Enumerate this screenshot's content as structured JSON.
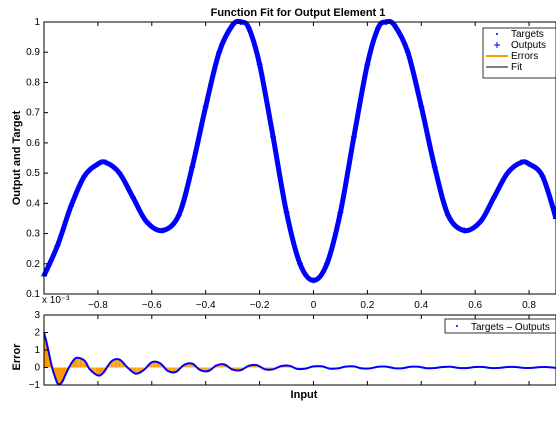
{
  "colors": {
    "targets": "#0000ff",
    "outputs": "#0000ff",
    "errors": "#ff9900",
    "fit": "#000000",
    "axes": "#000000"
  },
  "chart_data": [
    {
      "type": "line",
      "title": "Function Fit for Output Element 1",
      "xlabel": "",
      "ylabel": "Output and Target",
      "xlim": [
        -1,
        0.9
      ],
      "ylim": [
        0.1,
        1.0
      ],
      "x_ticks": [
        -0.8,
        -0.6,
        -0.4,
        -0.2,
        0,
        0.2,
        0.4,
        0.6,
        0.8
      ],
      "x_tick_labels": [
        "−0.8",
        "−0.6",
        "−0.4",
        "−0.2",
        "0",
        "0.2",
        "0.4",
        "0.6",
        "0.8"
      ],
      "y_ticks": [
        0.1,
        0.2,
        0.3,
        0.4,
        0.5,
        0.6,
        0.7,
        0.8,
        0.9,
        1
      ],
      "y_tick_labels": [
        "0.1",
        "0.2",
        "0.3",
        "0.4",
        "0.5",
        "0.6",
        "0.7",
        "0.8",
        "0.9",
        "1"
      ],
      "legend": {
        "position": "top-right",
        "entries": [
          "Targets",
          "Outputs",
          "Errors",
          "Fit"
        ]
      },
      "series": [
        {
          "name": "Targets",
          "marker": "dot",
          "x": [
            -1.0,
            -0.95,
            -0.9,
            -0.85,
            -0.8,
            -0.77,
            -0.72,
            -0.67,
            -0.62,
            -0.56,
            -0.5,
            -0.45,
            -0.4,
            -0.35,
            -0.3,
            -0.27,
            -0.24,
            -0.2,
            -0.15,
            -0.1,
            -0.05,
            0.0,
            0.05,
            0.1,
            0.15,
            0.2,
            0.24,
            0.27,
            0.3,
            0.35,
            0.4,
            0.45,
            0.5,
            0.56,
            0.62,
            0.67,
            0.72,
            0.77,
            0.8,
            0.85,
            0.9
          ],
          "y": [
            0.16,
            0.26,
            0.39,
            0.49,
            0.53,
            0.535,
            0.5,
            0.42,
            0.34,
            0.31,
            0.36,
            0.52,
            0.72,
            0.9,
            0.99,
            1.0,
            0.98,
            0.86,
            0.62,
            0.37,
            0.2,
            0.145,
            0.2,
            0.37,
            0.62,
            0.86,
            0.98,
            1.0,
            0.99,
            0.9,
            0.72,
            0.52,
            0.36,
            0.31,
            0.34,
            0.42,
            0.5,
            0.535,
            0.53,
            0.49,
            0.35
          ]
        },
        {
          "name": "Outputs",
          "marker": "plus",
          "x": [
            -1.0,
            -0.95,
            -0.9,
            -0.85,
            -0.8,
            -0.77,
            -0.72,
            -0.67,
            -0.62,
            -0.56,
            -0.5,
            -0.45,
            -0.4,
            -0.35,
            -0.3,
            -0.27,
            -0.24,
            -0.2,
            -0.15,
            -0.1,
            -0.05,
            0.0,
            0.05,
            0.1,
            0.15,
            0.2,
            0.24,
            0.27,
            0.3,
            0.35,
            0.4,
            0.45,
            0.5,
            0.56,
            0.62,
            0.67,
            0.72,
            0.77,
            0.8,
            0.85,
            0.9
          ],
          "y": [
            0.16,
            0.26,
            0.39,
            0.49,
            0.53,
            0.535,
            0.5,
            0.42,
            0.34,
            0.31,
            0.36,
            0.52,
            0.72,
            0.9,
            0.99,
            1.0,
            0.98,
            0.86,
            0.62,
            0.37,
            0.2,
            0.145,
            0.2,
            0.37,
            0.62,
            0.86,
            0.98,
            1.0,
            0.99,
            0.9,
            0.72,
            0.52,
            0.36,
            0.31,
            0.34,
            0.42,
            0.5,
            0.535,
            0.53,
            0.49,
            0.35
          ]
        },
        {
          "name": "Fit",
          "marker": "none",
          "x": [
            -1.0,
            -0.95,
            -0.9,
            -0.85,
            -0.8,
            -0.77,
            -0.72,
            -0.67,
            -0.62,
            -0.56,
            -0.5,
            -0.45,
            -0.4,
            -0.35,
            -0.3,
            -0.27,
            -0.24,
            -0.2,
            -0.15,
            -0.1,
            -0.05,
            0.0,
            0.05,
            0.1,
            0.15,
            0.2,
            0.24,
            0.27,
            0.3,
            0.35,
            0.4,
            0.45,
            0.5,
            0.56,
            0.62,
            0.67,
            0.72,
            0.77,
            0.8,
            0.85,
            0.9
          ],
          "y": [
            0.16,
            0.26,
            0.39,
            0.49,
            0.53,
            0.535,
            0.5,
            0.42,
            0.34,
            0.31,
            0.36,
            0.52,
            0.72,
            0.9,
            0.99,
            1.0,
            0.98,
            0.86,
            0.62,
            0.37,
            0.2,
            0.145,
            0.2,
            0.37,
            0.62,
            0.86,
            0.98,
            1.0,
            0.99,
            0.9,
            0.72,
            0.52,
            0.36,
            0.31,
            0.34,
            0.42,
            0.5,
            0.535,
            0.53,
            0.49,
            0.35
          ]
        }
      ]
    },
    {
      "type": "area",
      "title": "",
      "xlabel": "Input",
      "ylabel": "Error",
      "xlim": [
        -1,
        0.9
      ],
      "ylim": [
        -1,
        3
      ],
      "y_multiplier": "x 10⁻³",
      "y_ticks": [
        -1,
        0,
        1,
        2,
        3
      ],
      "y_tick_labels": [
        "−1",
        "0",
        "1",
        "2",
        "3"
      ],
      "legend": {
        "position": "top-right",
        "entries": [
          "Targets – Outputs"
        ]
      },
      "series": [
        {
          "name": "Targets – Outputs",
          "x": [
            -1.0,
            -0.99,
            -0.98,
            -0.97,
            -0.96,
            -0.95,
            -0.94,
            -0.93,
            -0.92,
            -0.9,
            -0.88,
            -0.85,
            -0.83,
            -0.8,
            -0.78,
            -0.75,
            -0.72,
            -0.69,
            -0.66,
            -0.63,
            -0.6,
            -0.57,
            -0.54,
            -0.51,
            -0.48,
            -0.45,
            -0.42,
            -0.39,
            -0.36,
            -0.33,
            -0.3,
            -0.27,
            -0.24,
            -0.21,
            -0.18,
            -0.15,
            -0.12,
            -0.09,
            -0.06,
            -0.03,
            0.0,
            0.03,
            0.06,
            0.09,
            0.12,
            0.15,
            0.18,
            0.21,
            0.24,
            0.27,
            0.3,
            0.33,
            0.36,
            0.39,
            0.42,
            0.45,
            0.48,
            0.51,
            0.54,
            0.57,
            0.6,
            0.63,
            0.66,
            0.69,
            0.72,
            0.75,
            0.78,
            0.81,
            0.84,
            0.87,
            0.9
          ],
          "y": [
            2.0,
            1.4,
            0.7,
            0.0,
            -0.5,
            -0.9,
            -0.95,
            -0.75,
            -0.4,
            0.2,
            0.55,
            0.4,
            -0.1,
            -0.45,
            -0.3,
            0.35,
            0.45,
            0.0,
            -0.35,
            -0.15,
            0.3,
            0.25,
            -0.2,
            -0.25,
            0.15,
            0.22,
            -0.15,
            -0.2,
            0.12,
            0.17,
            -0.12,
            -0.15,
            0.1,
            0.13,
            -0.1,
            -0.1,
            0.08,
            0.1,
            -0.08,
            -0.06,
            0.06,
            0.07,
            -0.06,
            -0.05,
            0.05,
            0.06,
            -0.05,
            -0.05,
            0.04,
            0.05,
            -0.04,
            -0.04,
            0.04,
            0.04,
            -0.04,
            -0.03,
            0.03,
            0.04,
            -0.03,
            -0.03,
            0.03,
            0.03,
            -0.03,
            -0.02,
            0.03,
            0.03,
            -0.02,
            -0.02,
            0.02,
            0.02,
            -0.02
          ]
        }
      ]
    }
  ]
}
